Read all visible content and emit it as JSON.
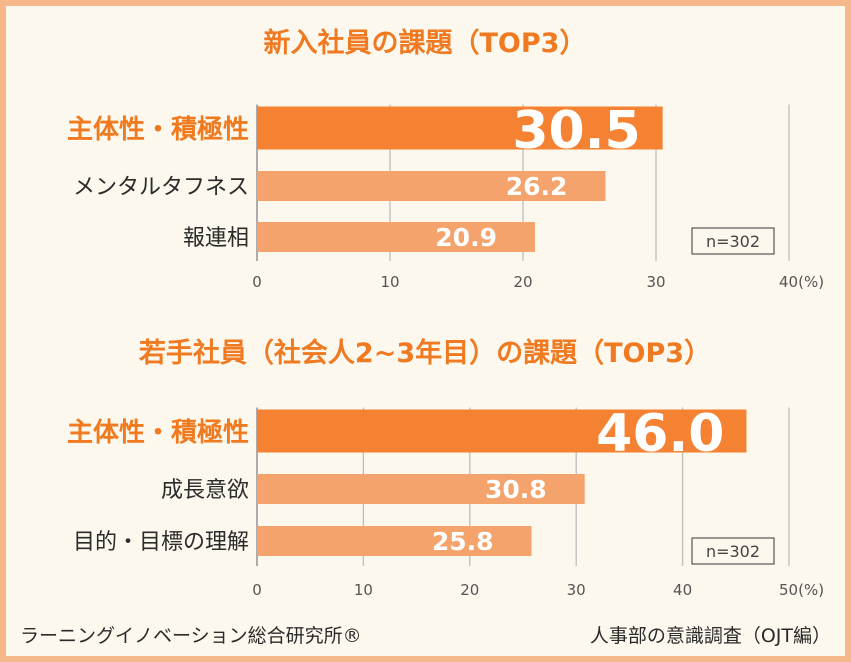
{
  "chart_data": [
    {
      "type": "bar",
      "title": "新入社員の課題（TOP3）",
      "categories": [
        "主体性・積極性",
        "メンタルタフネス",
        "報連相"
      ],
      "values": [
        30.5,
        26.2,
        20.9
      ],
      "value_labels": [
        "30.5",
        "26.2",
        "20.9"
      ],
      "xlim": [
        0,
        40
      ],
      "x_ticks": [
        "0",
        "10",
        "20",
        "30",
        "40(%)"
      ],
      "sample_size": "n=302",
      "grid": true
    },
    {
      "type": "bar",
      "title": "若手社員（社会人2~3年目）の課題（TOP3）",
      "categories": [
        "主体性・積極性",
        "成長意欲",
        "目的・目標の理解"
      ],
      "values": [
        46.0,
        30.8,
        25.8
      ],
      "value_labels": [
        "46.0",
        "30.8",
        "25.8"
      ],
      "xlim": [
        0,
        50
      ],
      "x_ticks": [
        "0",
        "10",
        "20",
        "30",
        "40",
        "50(%)"
      ],
      "sample_size": "n=302",
      "grid": true
    }
  ],
  "colors": {
    "top_bar": "#f58232",
    "other_bar": "#f5a36c",
    "title": "#f07a22",
    "top_label": "#ef7a1f",
    "label": "#2b2b2b",
    "frame": "#f6b78a",
    "background": "#fdf8ed"
  },
  "footer": {
    "left": "ラーニングイノベーション総合研究所®",
    "right": "人事部の意識調査（OJT編）"
  }
}
